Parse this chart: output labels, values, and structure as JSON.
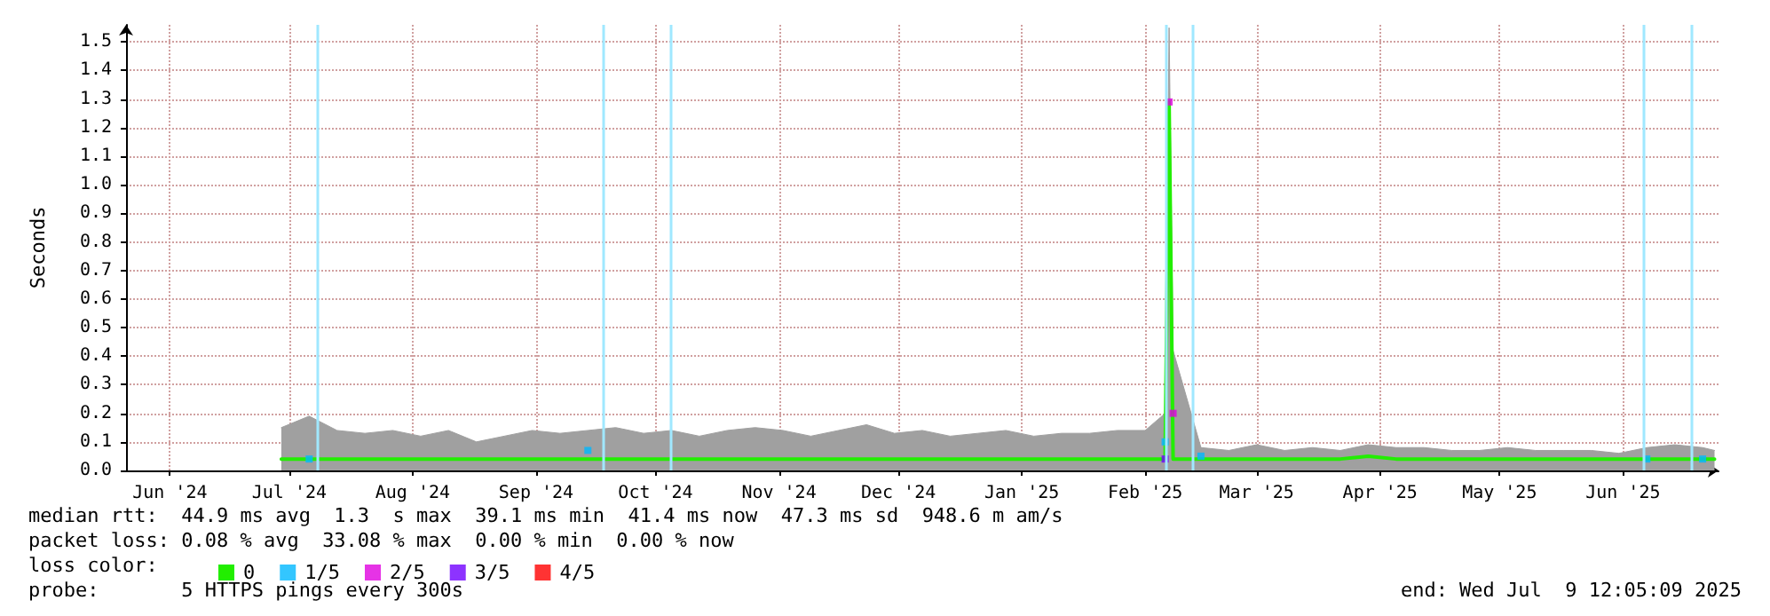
{
  "chart_data": {
    "type": "line",
    "ylabel": "Seconds",
    "legend_title": "loss color:",
    "legend": "bottom",
    "grid": true,
    "marker": "none",
    "x": [
      "2024-07-13",
      "2024-07-20",
      "2024-07-27",
      "2024-08-03",
      "2024-08-10",
      "2024-08-17",
      "2024-08-24",
      "2024-08-31",
      "2024-09-07",
      "2024-09-14",
      "2024-09-21",
      "2024-09-28",
      "2024-10-05",
      "2024-10-12",
      "2024-10-19",
      "2024-10-26",
      "2024-11-02",
      "2024-11-09",
      "2024-11-16",
      "2024-11-23",
      "2024-11-30",
      "2024-12-07",
      "2024-12-14",
      "2024-12-21",
      "2024-12-28",
      "2025-01-04",
      "2025-01-11",
      "2025-01-18",
      "2025-01-25",
      "2025-02-01",
      "2025-02-08",
      "2025-02-15",
      "2025-02-20",
      "2025-02-21",
      "2025-02-22",
      "2025-03-01",
      "2025-03-08",
      "2025-03-15",
      "2025-03-22",
      "2025-03-29",
      "2025-04-05",
      "2025-04-12",
      "2025-04-19",
      "2025-04-26",
      "2025-05-03",
      "2025-05-10",
      "2025-05-17",
      "2025-05-24",
      "2025-05-31",
      "2025-06-07",
      "2025-06-14",
      "2025-06-21",
      "2025-06-28",
      "2025-07-05",
      "2025-07-08"
    ],
    "series": [
      {
        "type": "area",
        "color": "#a0a0a0",
        "values": [
          0.15,
          0.19,
          0.14,
          0.13,
          0.14,
          0.12,
          0.14,
          0.1,
          0.12,
          0.14,
          0.13,
          0.14,
          0.15,
          0.13,
          0.14,
          0.12,
          0.14,
          0.15,
          0.14,
          0.12,
          0.14,
          0.16,
          0.13,
          0.14,
          0.12,
          0.13,
          0.14,
          0.12,
          0.13,
          0.13,
          0.14,
          0.14,
          0.2,
          1.55,
          0.42,
          0.08,
          0.07,
          0.09,
          0.07,
          0.08,
          0.07,
          0.09,
          0.08,
          0.08,
          0.07,
          0.07,
          0.08,
          0.07,
          0.07,
          0.07,
          0.06,
          0.08,
          0.09,
          0.08,
          0.07
        ]
      },
      {
        "name": "0",
        "color": "#22ee00",
        "values": [
          0.04,
          0.04,
          0.04,
          0.04,
          0.04,
          0.04,
          0.04,
          0.04,
          0.04,
          0.04,
          0.04,
          0.04,
          0.04,
          0.04,
          0.04,
          0.04,
          0.04,
          0.04,
          0.04,
          0.04,
          0.04,
          0.04,
          0.04,
          0.04,
          0.04,
          0.04,
          0.04,
          0.04,
          0.04,
          0.04,
          0.04,
          0.04,
          0.04,
          1.29,
          0.04,
          0.04,
          0.04,
          0.04,
          0.04,
          0.04,
          0.04,
          0.05,
          0.04,
          0.04,
          0.04,
          0.04,
          0.04,
          0.04,
          0.04,
          0.04,
          0.04,
          0.04,
          0.04,
          0.04,
          0.04
        ]
      },
      {
        "name": "1/5",
        "type": "scatter",
        "marker": "square",
        "color": "#00b8ff",
        "values": [
          null,
          0.04,
          null,
          null,
          null,
          null,
          null,
          null,
          null,
          null,
          null,
          0.07,
          null,
          null,
          null,
          null,
          null,
          null,
          null,
          null,
          null,
          null,
          null,
          null,
          null,
          null,
          null,
          null,
          null,
          null,
          null,
          null,
          0.1,
          null,
          null,
          0.05,
          null,
          null,
          null,
          null,
          null,
          null,
          null,
          null,
          null,
          null,
          null,
          null,
          null,
          null,
          null,
          0.04,
          null,
          0.04,
          null
        ]
      },
      {
        "name": "2/5",
        "type": "scatter",
        "marker": "square",
        "color": "#e000e0",
        "values": [
          null,
          null,
          null,
          null,
          null,
          null,
          null,
          null,
          null,
          null,
          null,
          null,
          null,
          null,
          null,
          null,
          null,
          null,
          null,
          null,
          null,
          null,
          null,
          null,
          null,
          null,
          null,
          null,
          null,
          null,
          null,
          null,
          null,
          1.29,
          0.2,
          null,
          null,
          null,
          null,
          null,
          null,
          null,
          null,
          null,
          null,
          null,
          null,
          null,
          null,
          null,
          null,
          null,
          null,
          null,
          null
        ]
      },
      {
        "name": "3/5",
        "type": "scatter",
        "marker": "square",
        "color": "#7000ff",
        "values": [
          null,
          null,
          null,
          null,
          null,
          null,
          null,
          null,
          null,
          null,
          null,
          null,
          null,
          null,
          null,
          null,
          null,
          null,
          null,
          null,
          null,
          null,
          null,
          null,
          null,
          null,
          null,
          null,
          null,
          null,
          null,
          null,
          0.04,
          null,
          null,
          null,
          null,
          null,
          null,
          null,
          null,
          null,
          null,
          null,
          null,
          null,
          null,
          null,
          null,
          null,
          null,
          null,
          null,
          null,
          null
        ]
      },
      {
        "name": "4/5",
        "type": "scatter",
        "marker": "square",
        "color": "#ff0000",
        "values": [
          null,
          null,
          null,
          null,
          null,
          null,
          null,
          null,
          null,
          null,
          null,
          null,
          null,
          null,
          null,
          null,
          null,
          null,
          null,
          null,
          null,
          null,
          null,
          null,
          null,
          null,
          null,
          null,
          null,
          null,
          null,
          null,
          null,
          null,
          null,
          null,
          null,
          null,
          null,
          null,
          null,
          null,
          null,
          null,
          null,
          null,
          null,
          null,
          null,
          null,
          null,
          null,
          null,
          null,
          null
        ]
      }
    ],
    "xlim": [
      "2024-06-04",
      "2025-07-09"
    ],
    "xticks": [
      {
        "value": "2024-06-15",
        "label": "Jun '24"
      },
      {
        "value": "2024-07-15",
        "label": "Jul '24"
      },
      {
        "value": "2024-08-15",
        "label": "Aug '24"
      },
      {
        "value": "2024-09-15",
        "label": "Sep '24"
      },
      {
        "value": "2024-10-15",
        "label": "Oct '24"
      },
      {
        "value": "2024-11-15",
        "label": "Nov '24"
      },
      {
        "value": "2024-12-15",
        "label": "Dec '24"
      },
      {
        "value": "2025-01-15",
        "label": "Jan '25"
      },
      {
        "value": "2025-02-15",
        "label": "Feb '25"
      },
      {
        "value": "2025-03-15",
        "label": "Mar '25"
      },
      {
        "value": "2025-04-15",
        "label": "Apr '25"
      },
      {
        "value": "2025-05-15",
        "label": "May '25"
      },
      {
        "value": "2025-06-15",
        "label": "Jun '25"
      }
    ],
    "ylim": [
      0,
      1.56
    ],
    "yticks": [
      {
        "value": 0,
        "label": "0.0"
      },
      0.1,
      0.2,
      0.3,
      0.4,
      0.5,
      0.6,
      0.7,
      0.8,
      0.9,
      {
        "value": 1,
        "label": "1.0"
      },
      1.1,
      1.2,
      1.3,
      1.4,
      1.5
    ],
    "ref_lines": [
      {
        "axis": "x",
        "value": "2024-07-22",
        "color": "#a0e8ff"
      },
      {
        "axis": "x",
        "value": "2024-10-02",
        "color": "#a0e8ff"
      },
      {
        "axis": "x",
        "value": "2024-10-19",
        "color": "#a0e8ff"
      },
      {
        "axis": "x",
        "value": "2025-02-20",
        "color": "#a0e8ff"
      },
      {
        "axis": "x",
        "value": "2025-02-27",
        "color": "#a0e8ff"
      },
      {
        "axis": "x",
        "value": "2025-06-20",
        "color": "#a0e8ff"
      },
      {
        "axis": "x",
        "value": "2025-07-02",
        "color": "#a0e8ff"
      }
    ],
    "annotations": [
      "median rtt:  44.9 ms avg  1.3  s max  39.1 ms min  41.4 ms now  47.3 ms sd  948.6 m am/s",
      "packet loss: 0.08 % avg  33.08 % max  0.00 % min  0.00 % now",
      "probe:       5 HTTPS pings every 300s",
      "end: Wed Jul  9 12:05:09 2025"
    ]
  }
}
